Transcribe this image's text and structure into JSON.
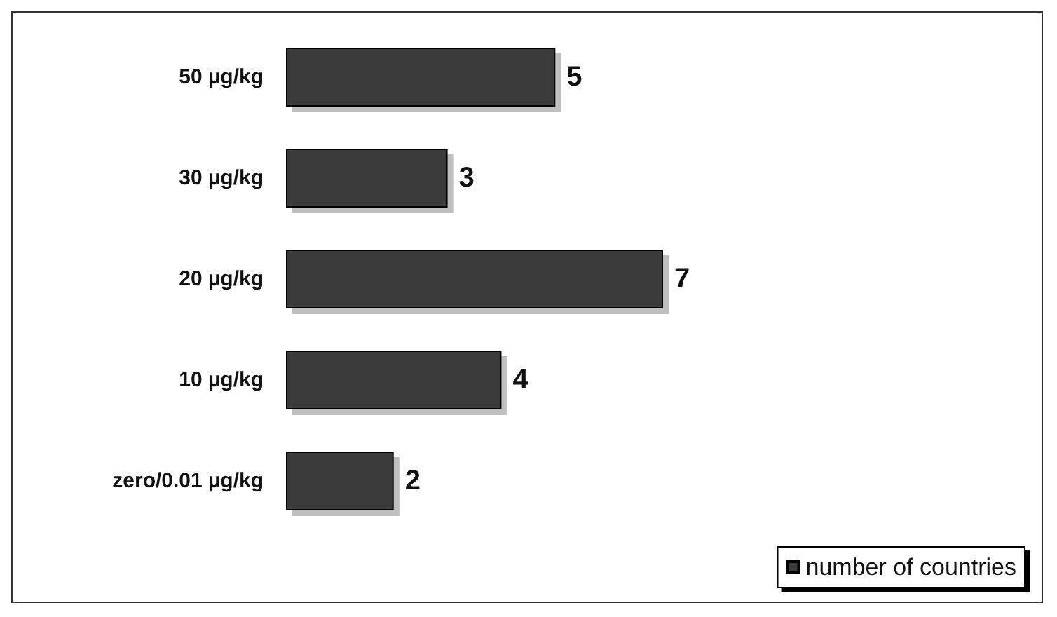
{
  "chart_data": {
    "type": "bar",
    "orientation": "horizontal",
    "categories": [
      "50 µg/kg",
      "30 µg/kg",
      "20 µg/kg",
      "10 µg/kg",
      "zero/0.01 µg/kg"
    ],
    "series": [
      {
        "name": "number of countries",
        "color": "#3a3a3a",
        "values": [
          5,
          3,
          7,
          4,
          2
        ]
      }
    ],
    "data_labels": true,
    "legend": "bottom right",
    "grid": false
  }
}
